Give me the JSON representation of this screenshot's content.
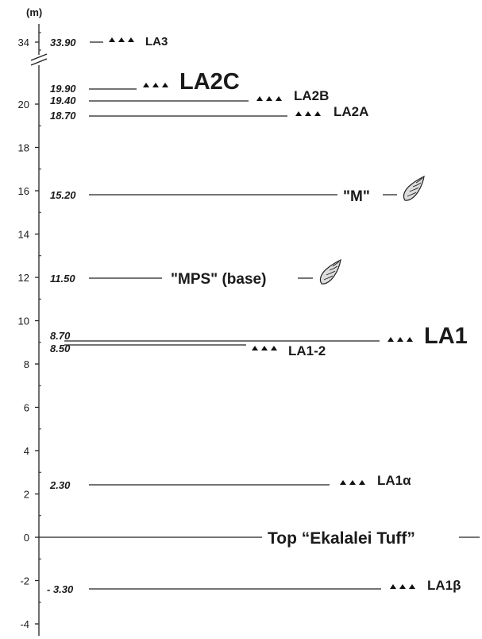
{
  "axis": {
    "unit": "(m)",
    "ticks_lower": [
      "-4",
      "-2",
      "0",
      "2",
      "4",
      "6",
      "8",
      "10",
      "12",
      "14",
      "16",
      "18",
      "20"
    ],
    "tick_top": "34",
    "break_symbol": "//"
  },
  "levels": [
    {
      "value": "33.90",
      "label": "LA3"
    },
    {
      "value": "19.90",
      "label": "LA2C"
    },
    {
      "value": "19.40",
      "label": "LA2B"
    },
    {
      "value": "18.70",
      "label": "LA2A"
    },
    {
      "value": "15.20",
      "label": "\"M\""
    },
    {
      "value": "11.50",
      "label": "\"MPS\" (base)"
    },
    {
      "value": "8.70",
      "label": "LA1"
    },
    {
      "value": "8.50",
      "label": "LA1-2"
    },
    {
      "value": "2.30",
      "label": "LA1α"
    },
    {
      "value": "- 3.30",
      "label": "LA1β"
    }
  ],
  "datum_label": "Top “Ekalalei Tuff”",
  "icons": [
    "triangle-cluster-icon",
    "gastropod-shell-icon"
  ]
}
